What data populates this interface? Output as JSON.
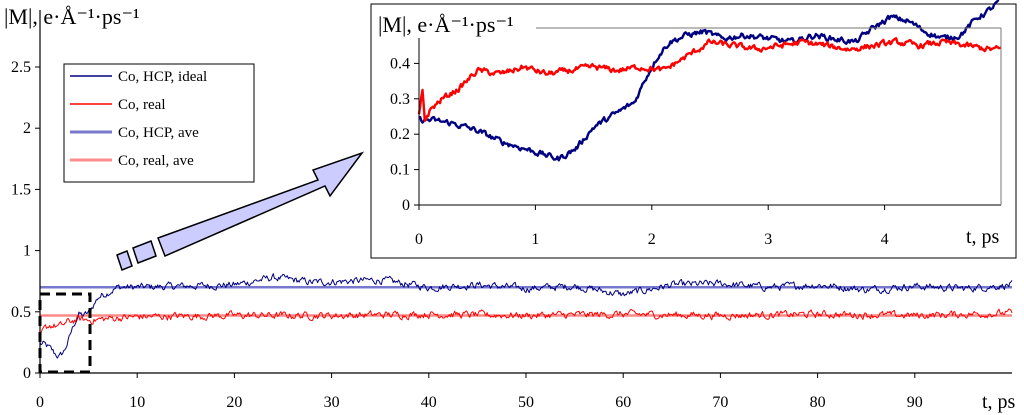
{
  "chart_data": [
    {
      "type": "line",
      "id": "main",
      "ylabel": "|M|, e·Å⁻¹·ps⁻¹",
      "xlabel": "t, ps",
      "xlim": [
        0,
        100
      ],
      "ylim": [
        0,
        2.5
      ],
      "xticks": [
        0,
        10,
        20,
        30,
        40,
        50,
        60,
        70,
        80,
        90
      ],
      "yticks": [
        0,
        0.5,
        1,
        1.5,
        2,
        2.5
      ],
      "legend_position": "top-left",
      "series": [
        {
          "name": "Co, HCP, ideal",
          "color": "#000080",
          "kind": "noisy",
          "x": [
            0,
            0.5,
            1,
            1.5,
            2,
            2.5,
            3,
            3.5,
            4,
            4.5,
            5,
            6,
            8,
            10,
            15,
            20,
            24,
            28,
            35,
            40,
            45,
            50,
            55,
            60,
            65,
            70,
            75,
            80,
            85,
            90,
            95,
            100
          ],
          "y": [
            0.24,
            0.23,
            0.2,
            0.16,
            0.13,
            0.18,
            0.28,
            0.4,
            0.48,
            0.47,
            0.49,
            0.62,
            0.7,
            0.7,
            0.71,
            0.72,
            0.78,
            0.74,
            0.76,
            0.7,
            0.72,
            0.69,
            0.71,
            0.64,
            0.72,
            0.73,
            0.7,
            0.72,
            0.68,
            0.71,
            0.69,
            0.72
          ]
        },
        {
          "name": "Co, real",
          "color": "#ff0000",
          "kind": "noisy",
          "x": [
            0,
            0.5,
            1,
            2,
            3,
            4,
            5,
            8,
            10,
            20,
            30,
            40,
            50,
            60,
            70,
            80,
            90,
            100
          ],
          "y": [
            0.3,
            0.36,
            0.39,
            0.38,
            0.42,
            0.44,
            0.43,
            0.45,
            0.46,
            0.47,
            0.47,
            0.48,
            0.47,
            0.48,
            0.47,
            0.48,
            0.47,
            0.49
          ]
        },
        {
          "name": "Co, HCP, ave",
          "color": "#7777cc",
          "kind": "flat",
          "x": [
            0,
            100
          ],
          "y": [
            0.7,
            0.7
          ]
        },
        {
          "name": "Co, real, ave",
          "color": "#ff8a8a",
          "kind": "flat",
          "x": [
            0,
            100
          ],
          "y": [
            0.47,
            0.47
          ]
        }
      ]
    },
    {
      "type": "line",
      "id": "inset",
      "ylabel": "|M|, e·Å⁻¹·ps⁻¹",
      "xlabel": "t, ps",
      "xlim": [
        0,
        5
      ],
      "ylim": [
        0,
        0.5
      ],
      "xticks": [
        0,
        1,
        2,
        3,
        4
      ],
      "yticks": [
        0,
        0.1,
        0.2,
        0.3,
        0.4,
        0.5
      ],
      "series": [
        {
          "name": "Co, HCP, ideal",
          "color": "#000080",
          "kind": "noisy",
          "x": [
            0,
            0.1,
            0.3,
            0.5,
            0.7,
            0.9,
            1.1,
            1.2,
            1.35,
            1.5,
            1.7,
            1.85,
            1.95,
            2.05,
            2.15,
            2.3,
            2.45,
            2.6,
            2.8,
            3.0,
            3.2,
            3.4,
            3.55,
            3.75,
            3.9,
            4.05,
            4.2,
            4.35,
            4.5,
            4.65,
            4.8,
            4.9,
            5.0
          ],
          "y": [
            0.24,
            0.24,
            0.23,
            0.21,
            0.18,
            0.16,
            0.14,
            0.13,
            0.16,
            0.22,
            0.26,
            0.29,
            0.36,
            0.42,
            0.46,
            0.48,
            0.49,
            0.47,
            0.48,
            0.47,
            0.46,
            0.48,
            0.47,
            0.46,
            0.5,
            0.53,
            0.52,
            0.49,
            0.47,
            0.48,
            0.53,
            0.55,
            0.58
          ]
        },
        {
          "name": "Co, real",
          "color": "#ff0000",
          "kind": "noisy",
          "x": [
            0,
            0.03,
            0.05,
            0.1,
            0.2,
            0.35,
            0.5,
            0.7,
            0.9,
            1.1,
            1.3,
            1.5,
            1.7,
            1.9,
            2.1,
            2.3,
            2.5,
            2.7,
            2.9,
            3.1,
            3.3,
            3.5,
            3.7,
            3.9,
            4.1,
            4.3,
            4.5,
            4.7,
            4.9,
            5.0
          ],
          "y": [
            0.25,
            0.32,
            0.24,
            0.27,
            0.3,
            0.33,
            0.38,
            0.37,
            0.39,
            0.37,
            0.38,
            0.39,
            0.38,
            0.39,
            0.38,
            0.42,
            0.46,
            0.45,
            0.44,
            0.45,
            0.46,
            0.45,
            0.44,
            0.45,
            0.46,
            0.45,
            0.46,
            0.45,
            0.44,
            0.44
          ]
        }
      ]
    }
  ]
}
